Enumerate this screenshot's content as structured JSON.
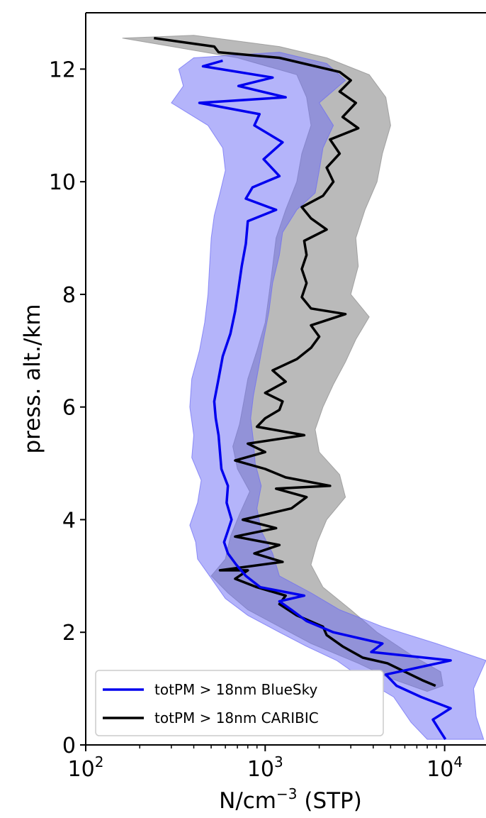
{
  "chart_data": {
    "type": "line",
    "xscale": "log",
    "xlim": [
      100,
      17000
    ],
    "ylim": [
      0,
      13.0
    ],
    "xlabel_base": "N/cm",
    "xlabel_exp": "−3",
    "xlabel_rest": " (STP)",
    "ylabel": "press. alt./km",
    "x_ticks": [
      {
        "base": "10",
        "exp": "2",
        "value": 100
      },
      {
        "base": "10",
        "exp": "3",
        "value": 1000
      },
      {
        "base": "10",
        "exp": "4",
        "value": 10000
      }
    ],
    "y_ticks": [
      {
        "label": "0",
        "value": 0
      },
      {
        "label": "2",
        "value": 2
      },
      {
        "label": "4",
        "value": 4
      },
      {
        "label": "6",
        "value": 6
      },
      {
        "label": "8",
        "value": 8
      },
      {
        "label": "10",
        "value": 10
      },
      {
        "label": "12",
        "value": 12
      }
    ],
    "grid": false,
    "legend_position": "lower-left",
    "series": [
      {
        "name": "totPM > 18nm BlueSky",
        "color": "#0000ee",
        "band_color": "#6a6af5",
        "points": [
          [
            10100,
            0.1
          ],
          [
            9200,
            0.3
          ],
          [
            8600,
            0.45
          ],
          [
            10800,
            0.65
          ],
          [
            7400,
            0.85
          ],
          [
            5400,
            1.05
          ],
          [
            4700,
            1.25
          ],
          [
            10800,
            1.5
          ],
          [
            3900,
            1.65
          ],
          [
            4500,
            1.8
          ],
          [
            2400,
            2.0
          ],
          [
            1700,
            2.2
          ],
          [
            1400,
            2.4
          ],
          [
            1200,
            2.55
          ],
          [
            1650,
            2.65
          ],
          [
            940,
            2.8
          ],
          [
            780,
            3.0
          ],
          [
            690,
            3.2
          ],
          [
            620,
            3.4
          ],
          [
            590,
            3.6
          ],
          [
            620,
            3.8
          ],
          [
            650,
            4.0
          ],
          [
            610,
            4.3
          ],
          [
            620,
            4.6
          ],
          [
            570,
            4.9
          ],
          [
            560,
            5.2
          ],
          [
            550,
            5.5
          ],
          [
            530,
            5.8
          ],
          [
            520,
            6.1
          ],
          [
            550,
            6.5
          ],
          [
            580,
            6.9
          ],
          [
            640,
            7.3
          ],
          [
            680,
            7.7
          ],
          [
            710,
            8.1
          ],
          [
            740,
            8.5
          ],
          [
            780,
            8.9
          ],
          [
            800,
            9.3
          ],
          [
            1150,
            9.5
          ],
          [
            780,
            9.7
          ],
          [
            850,
            9.9
          ],
          [
            1200,
            10.1
          ],
          [
            980,
            10.4
          ],
          [
            1250,
            10.7
          ],
          [
            870,
            11.0
          ],
          [
            930,
            11.2
          ],
          [
            430,
            11.4
          ],
          [
            1300,
            11.5
          ],
          [
            710,
            11.7
          ],
          [
            1100,
            11.85
          ],
          [
            450,
            12.05
          ],
          [
            580,
            12.15
          ]
        ],
        "lower": [
          [
            8000,
            0.1
          ],
          [
            6500,
            0.4
          ],
          [
            5200,
            0.85
          ],
          [
            3400,
            1.2
          ],
          [
            2500,
            1.5
          ],
          [
            1700,
            1.75
          ],
          [
            1200,
            2.0
          ],
          [
            800,
            2.3
          ],
          [
            600,
            2.6
          ],
          [
            490,
            3.0
          ],
          [
            420,
            3.3
          ],
          [
            410,
            3.6
          ],
          [
            380,
            3.9
          ],
          [
            420,
            4.3
          ],
          [
            440,
            4.7
          ],
          [
            390,
            5.1
          ],
          [
            400,
            5.5
          ],
          [
            380,
            6.0
          ],
          [
            390,
            6.5
          ],
          [
            430,
            7.0
          ],
          [
            460,
            7.5
          ],
          [
            480,
            8.0
          ],
          [
            490,
            8.5
          ],
          [
            500,
            9.0
          ],
          [
            520,
            9.4
          ],
          [
            560,
            9.8
          ],
          [
            600,
            10.2
          ],
          [
            580,
            10.6
          ],
          [
            480,
            11.0
          ],
          [
            300,
            11.4
          ],
          [
            350,
            11.7
          ],
          [
            330,
            12.0
          ],
          [
            400,
            12.2
          ]
        ],
        "upper": [
          [
            16500,
            0.1
          ],
          [
            15000,
            0.5
          ],
          [
            14500,
            1.0
          ],
          [
            17000,
            1.5
          ],
          [
            9000,
            1.8
          ],
          [
            4500,
            2.1
          ],
          [
            2600,
            2.4
          ],
          [
            1800,
            2.7
          ],
          [
            1200,
            3.0
          ],
          [
            1100,
            3.4
          ],
          [
            950,
            3.8
          ],
          [
            900,
            4.2
          ],
          [
            950,
            4.6
          ],
          [
            880,
            5.0
          ],
          [
            860,
            5.4
          ],
          [
            830,
            5.8
          ],
          [
            860,
            6.2
          ],
          [
            920,
            6.7
          ],
          [
            980,
            7.2
          ],
          [
            1050,
            7.7
          ],
          [
            1100,
            8.2
          ],
          [
            1200,
            8.7
          ],
          [
            1250,
            9.1
          ],
          [
            1500,
            9.5
          ],
          [
            1900,
            9.8
          ],
          [
            2000,
            10.2
          ],
          [
            2100,
            10.6
          ],
          [
            2400,
            11.0
          ],
          [
            2000,
            11.4
          ],
          [
            2800,
            11.8
          ],
          [
            2200,
            12.1
          ],
          [
            1200,
            12.3
          ]
        ]
      },
      {
        "name": "totPM > 18nm CARIBIC",
        "color": "#000000",
        "band_color": "#8c8c8c",
        "points": [
          [
            8900,
            1.05
          ],
          [
            7500,
            1.15
          ],
          [
            6000,
            1.3
          ],
          [
            4800,
            1.45
          ],
          [
            3500,
            1.55
          ],
          [
            2700,
            1.75
          ],
          [
            2200,
            1.95
          ],
          [
            2100,
            2.1
          ],
          [
            1500,
            2.3
          ],
          [
            1200,
            2.5
          ],
          [
            1300,
            2.65
          ],
          [
            900,
            2.8
          ],
          [
            680,
            2.95
          ],
          [
            800,
            3.1
          ],
          [
            560,
            3.1
          ],
          [
            1250,
            3.25
          ],
          [
            870,
            3.4
          ],
          [
            1200,
            3.55
          ],
          [
            680,
            3.7
          ],
          [
            1150,
            3.85
          ],
          [
            750,
            4.0
          ],
          [
            1400,
            4.2
          ],
          [
            1700,
            4.4
          ],
          [
            1150,
            4.55
          ],
          [
            2300,
            4.6
          ],
          [
            1300,
            4.75
          ],
          [
            1000,
            4.9
          ],
          [
            680,
            5.05
          ],
          [
            1000,
            5.2
          ],
          [
            800,
            5.35
          ],
          [
            1650,
            5.5
          ],
          [
            900,
            5.65
          ],
          [
            1000,
            5.8
          ],
          [
            1200,
            5.95
          ],
          [
            1250,
            6.1
          ],
          [
            1000,
            6.25
          ],
          [
            1300,
            6.45
          ],
          [
            1100,
            6.65
          ],
          [
            1500,
            6.85
          ],
          [
            1800,
            7.05
          ],
          [
            2000,
            7.25
          ],
          [
            1800,
            7.45
          ],
          [
            2800,
            7.65
          ],
          [
            1800,
            7.75
          ],
          [
            1600,
            7.95
          ],
          [
            1700,
            8.2
          ],
          [
            1600,
            8.45
          ],
          [
            1700,
            8.7
          ],
          [
            1650,
            8.95
          ],
          [
            2200,
            9.15
          ],
          [
            1800,
            9.35
          ],
          [
            1600,
            9.55
          ],
          [
            2100,
            9.75
          ],
          [
            2400,
            10.0
          ],
          [
            2200,
            10.25
          ],
          [
            2600,
            10.5
          ],
          [
            2300,
            10.75
          ],
          [
            3300,
            10.95
          ],
          [
            2700,
            11.15
          ],
          [
            3200,
            11.4
          ],
          [
            2600,
            11.6
          ],
          [
            3000,
            11.8
          ],
          [
            2600,
            11.95
          ],
          [
            1200,
            12.2
          ],
          [
            550,
            12.3
          ],
          [
            520,
            12.4
          ],
          [
            240,
            12.55
          ]
        ],
        "lower": [
          [
            8000,
            0.95
          ],
          [
            4800,
            1.2
          ],
          [
            3300,
            1.45
          ],
          [
            1800,
            1.8
          ],
          [
            1200,
            2.1
          ],
          [
            800,
            2.4
          ],
          [
            620,
            2.7
          ],
          [
            500,
            3.0
          ],
          [
            600,
            3.3
          ],
          [
            640,
            3.7
          ],
          [
            720,
            4.1
          ],
          [
            820,
            4.5
          ],
          [
            700,
            4.9
          ],
          [
            660,
            5.3
          ],
          [
            720,
            5.7
          ],
          [
            760,
            6.1
          ],
          [
            800,
            6.5
          ],
          [
            900,
            7.0
          ],
          [
            1000,
            7.5
          ],
          [
            1050,
            8.0
          ],
          [
            1100,
            8.5
          ],
          [
            1150,
            9.0
          ],
          [
            1300,
            9.5
          ],
          [
            1500,
            10.0
          ],
          [
            1600,
            10.5
          ],
          [
            1800,
            11.0
          ],
          [
            1700,
            11.5
          ],
          [
            1500,
            11.9
          ],
          [
            700,
            12.2
          ],
          [
            160,
            12.55
          ]
        ],
        "upper": [
          [
            9800,
            1.05
          ],
          [
            9500,
            1.3
          ],
          [
            6500,
            1.6
          ],
          [
            4200,
            2.0
          ],
          [
            3000,
            2.4
          ],
          [
            2100,
            2.8
          ],
          [
            1800,
            3.2
          ],
          [
            1950,
            3.6
          ],
          [
            2200,
            4.0
          ],
          [
            2800,
            4.4
          ],
          [
            2600,
            4.8
          ],
          [
            2000,
            5.2
          ],
          [
            1900,
            5.6
          ],
          [
            2100,
            6.0
          ],
          [
            2400,
            6.4
          ],
          [
            2800,
            6.8
          ],
          [
            3200,
            7.2
          ],
          [
            3800,
            7.6
          ],
          [
            3000,
            8.0
          ],
          [
            3300,
            8.5
          ],
          [
            3200,
            9.0
          ],
          [
            3600,
            9.5
          ],
          [
            4200,
            10.0
          ],
          [
            4500,
            10.5
          ],
          [
            5000,
            11.0
          ],
          [
            4700,
            11.5
          ],
          [
            3800,
            11.9
          ],
          [
            2200,
            12.2
          ],
          [
            1200,
            12.4
          ],
          [
            400,
            12.6
          ]
        ]
      }
    ]
  }
}
